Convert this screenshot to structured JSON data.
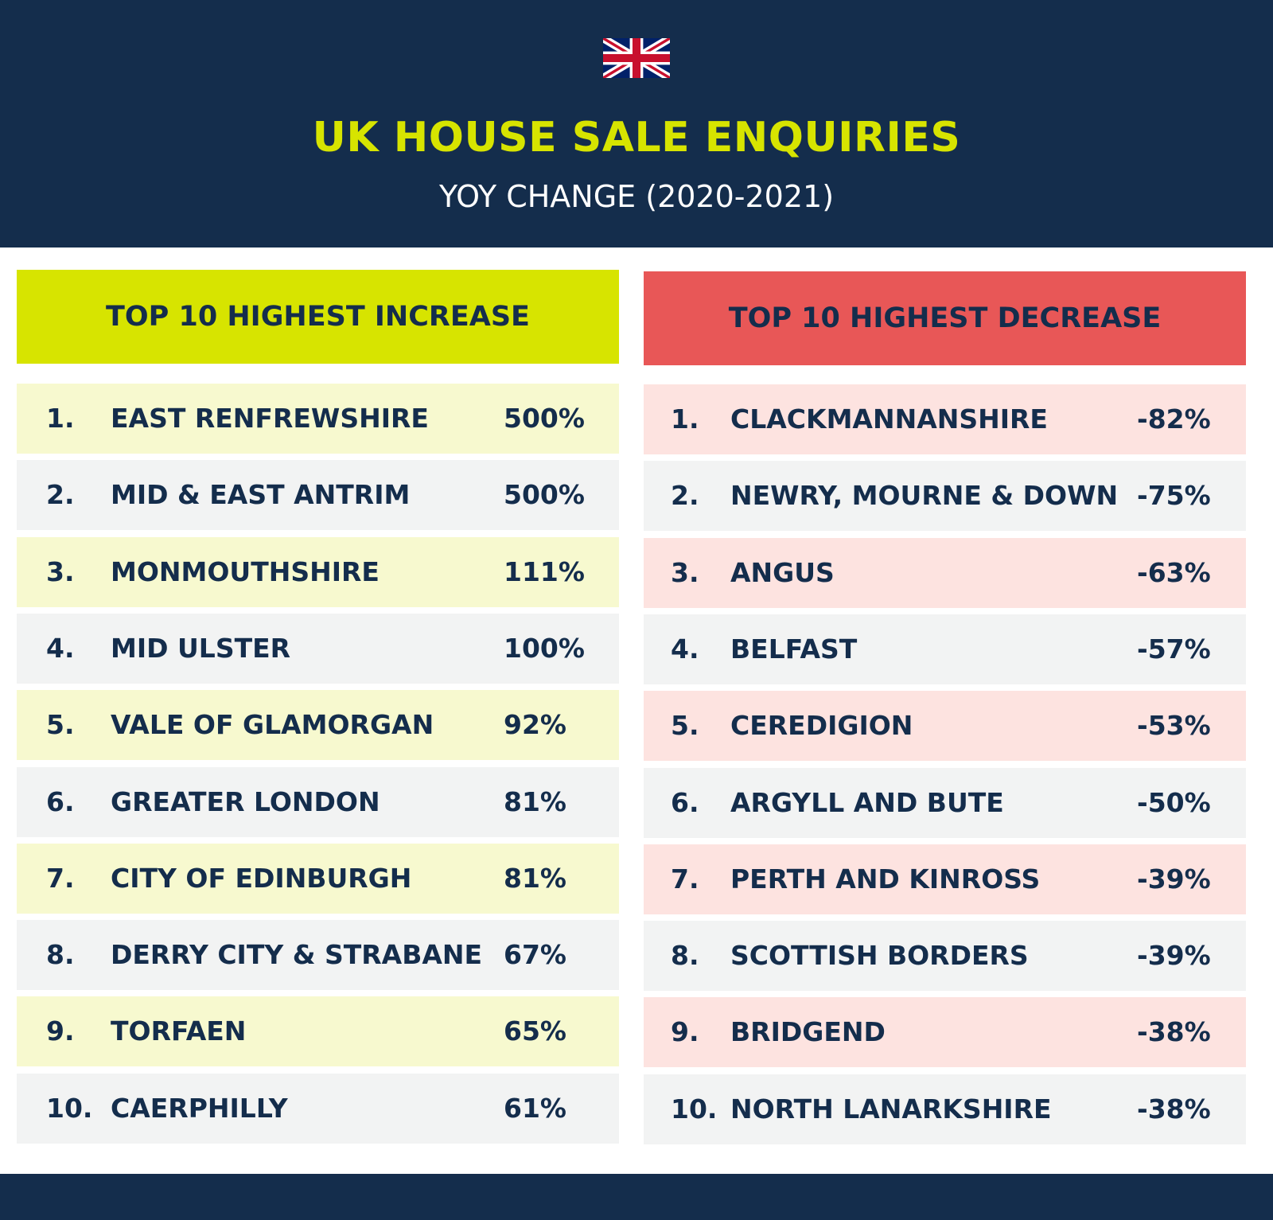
{
  "header": {
    "flag_icon": "uk-flag-icon",
    "title": "UK HOUSE SALE ENQUIRIES",
    "subtitle": "YOY CHANGE (2020-2021)"
  },
  "increase": {
    "heading": "TOP 10 HIGHEST INCREASE",
    "color": "#d7e400",
    "rows": [
      {
        "rank": "1.",
        "name": "EAST RENFREWSHIRE",
        "value": "500%"
      },
      {
        "rank": "2.",
        "name": "MID & EAST ANTRIM",
        "value": "500%"
      },
      {
        "rank": "3.",
        "name": "MONMOUTHSHIRE",
        "value": "111%"
      },
      {
        "rank": "4.",
        "name": "MID ULSTER",
        "value": "100%"
      },
      {
        "rank": "5.",
        "name": "VALE OF GLAMORGAN",
        "value": "92%"
      },
      {
        "rank": "6.",
        "name": "GREATER LONDON",
        "value": "81%"
      },
      {
        "rank": "7.",
        "name": "CITY OF EDINBURGH",
        "value": "81%"
      },
      {
        "rank": "8.",
        "name": "DERRY CITY & STRABANE",
        "value": "67%"
      },
      {
        "rank": "9.",
        "name": "TORFAEN",
        "value": "65%"
      },
      {
        "rank": "10.",
        "name": "CAERPHILLY",
        "value": "61%"
      }
    ]
  },
  "decrease": {
    "heading": "TOP 10 HIGHEST DECREASE",
    "color": "#e85757",
    "rows": [
      {
        "rank": "1.",
        "name": "CLACKMANNANSHIRE",
        "value": "-82%"
      },
      {
        "rank": "2.",
        "name": "NEWRY, MOURNE & DOWN",
        "value": "-75%"
      },
      {
        "rank": "3.",
        "name": "ANGUS",
        "value": "-63%"
      },
      {
        "rank": "4.",
        "name": "BELFAST",
        "value": "-57%"
      },
      {
        "rank": "5.",
        "name": "CEREDIGION",
        "value": "-53%"
      },
      {
        "rank": "6.",
        "name": "ARGYLL AND BUTE",
        "value": "-50%"
      },
      {
        "rank": "7.",
        "name": "PERTH AND KINROSS",
        "value": "-39%"
      },
      {
        "rank": "8.",
        "name": "SCOTTISH BORDERS",
        "value": "-39%"
      },
      {
        "rank": "9.",
        "name": "BRIDGEND",
        "value": "-38%"
      },
      {
        "rank": "10.",
        "name": "NORTH LANARKSHIRE",
        "value": "-38%"
      }
    ]
  }
}
